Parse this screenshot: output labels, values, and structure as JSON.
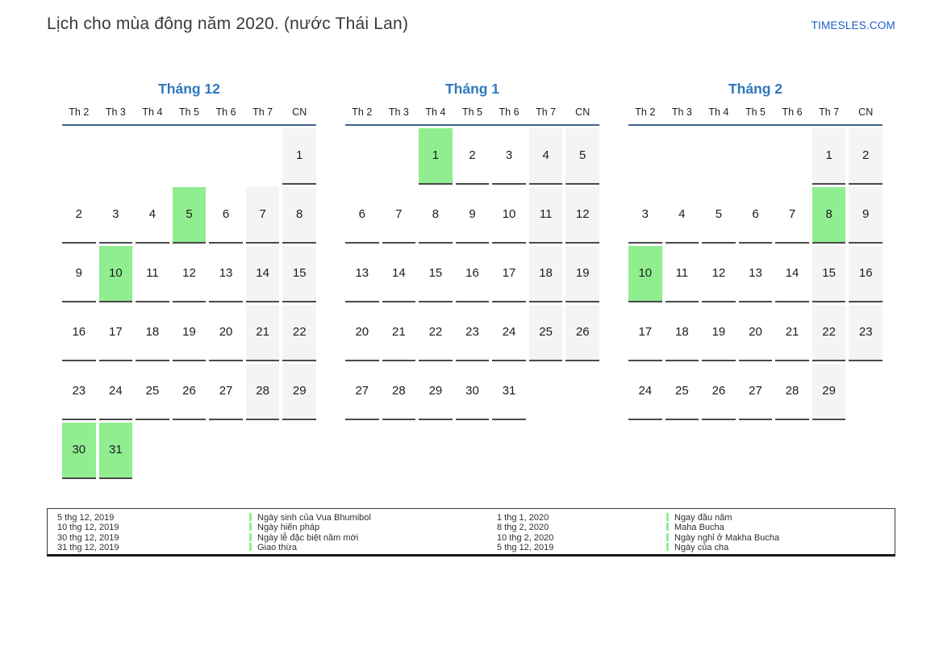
{
  "page": {
    "title": "Lịch cho mùa đông năm 2020. (nước Thái Lan)",
    "logo": "TIMESLES.COM"
  },
  "colors": {
    "title_text": "#3a3a3a",
    "logo_color": "#1e5fc0",
    "month_title": "#2e78be",
    "header_rule": "#42648e",
    "cell_rule": "#4a4a4a",
    "day_text": "#1c1c1c",
    "weekend_bg": "#f4f4f4",
    "highlight_bg": "#90ee90",
    "legend_border": "#3c3c3c"
  },
  "weekdays": [
    "Th 2",
    "Th 3",
    "Th 4",
    "Th 5",
    "Th 6",
    "Th 7",
    "CN"
  ],
  "months": [
    {
      "title": "Tháng 12",
      "weeks": [
        [
          "",
          "",
          "",
          "",
          "",
          "",
          "1"
        ],
        [
          "2",
          "3",
          "4",
          "5",
          "6",
          "7",
          "8"
        ],
        [
          "9",
          "10",
          "11",
          "12",
          "13",
          "14",
          "15"
        ],
        [
          "16",
          "17",
          "18",
          "19",
          "20",
          "21",
          "22"
        ],
        [
          "23",
          "24",
          "25",
          "26",
          "27",
          "28",
          "29"
        ],
        [
          "30",
          "31",
          "",
          "",
          "",
          "",
          ""
        ]
      ],
      "highlighted": [
        "5",
        "10",
        "30",
        "31"
      ]
    },
    {
      "title": "Tháng 1",
      "weeks": [
        [
          "",
          "",
          "1",
          "2",
          "3",
          "4",
          "5"
        ],
        [
          "6",
          "7",
          "8",
          "9",
          "10",
          "11",
          "12"
        ],
        [
          "13",
          "14",
          "15",
          "16",
          "17",
          "18",
          "19"
        ],
        [
          "20",
          "21",
          "22",
          "23",
          "24",
          "25",
          "26"
        ],
        [
          "27",
          "28",
          "29",
          "30",
          "31",
          "",
          ""
        ]
      ],
      "highlighted": [
        "1"
      ]
    },
    {
      "title": "Tháng 2",
      "weeks": [
        [
          "",
          "",
          "",
          "",
          "",
          "1",
          "2"
        ],
        [
          "3",
          "4",
          "5",
          "6",
          "7",
          "8",
          "9"
        ],
        [
          "10",
          "11",
          "12",
          "13",
          "14",
          "15",
          "16"
        ],
        [
          "17",
          "18",
          "19",
          "20",
          "21",
          "22",
          "23"
        ],
        [
          "24",
          "25",
          "26",
          "27",
          "28",
          "29",
          ""
        ]
      ],
      "highlighted": [
        "8",
        "10"
      ]
    }
  ],
  "legend": {
    "entries": [
      {
        "date": "5 thg 12, 2019",
        "label": "Ngày sinh của Vua Bhumibol"
      },
      {
        "date": "10 thg 12, 2019",
        "label": "Ngày hiến pháp"
      },
      {
        "date": "30 thg 12, 2019",
        "label": "Ngày lễ đặc biệt năm mới"
      },
      {
        "date": "31 thg 12, 2019",
        "label": "Giao thừa"
      },
      {
        "date": "1 thg 1, 2020",
        "label": "Ngay đầu năm"
      },
      {
        "date": "8 thg 2, 2020",
        "label": "Maha Bucha"
      },
      {
        "date": "10 thg 2, 2020",
        "label": "Ngày nghỉ ở Makha Bucha"
      },
      {
        "date": "5 thg 12, 2019",
        "label": "Ngày của cha"
      }
    ]
  }
}
